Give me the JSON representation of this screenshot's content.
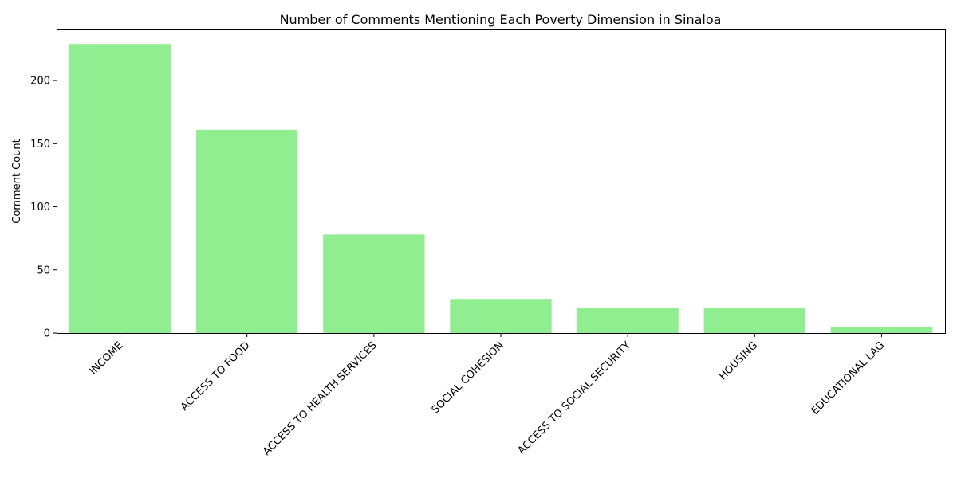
{
  "chart_data": {
    "type": "bar",
    "title": "Number of Comments Mentioning Each Poverty Dimension in Sinaloa",
    "xlabel": "",
    "ylabel": "Comment Count",
    "categories": [
      "INCOME",
      "ACCESS TO FOOD",
      "ACCESS TO HEALTH SERVICES",
      "SOCIAL COHESION",
      "ACCESS TO SOCIAL SECURITY",
      "HOUSING",
      "EDUCATIONAL LAG"
    ],
    "values": [
      229,
      161,
      78,
      27,
      20,
      20,
      5
    ],
    "ylim": [
      0,
      240.45
    ],
    "yticks": [
      0,
      50,
      100,
      150,
      200
    ],
    "bar_color": "#90EE90",
    "grid": false,
    "legend": "none"
  }
}
